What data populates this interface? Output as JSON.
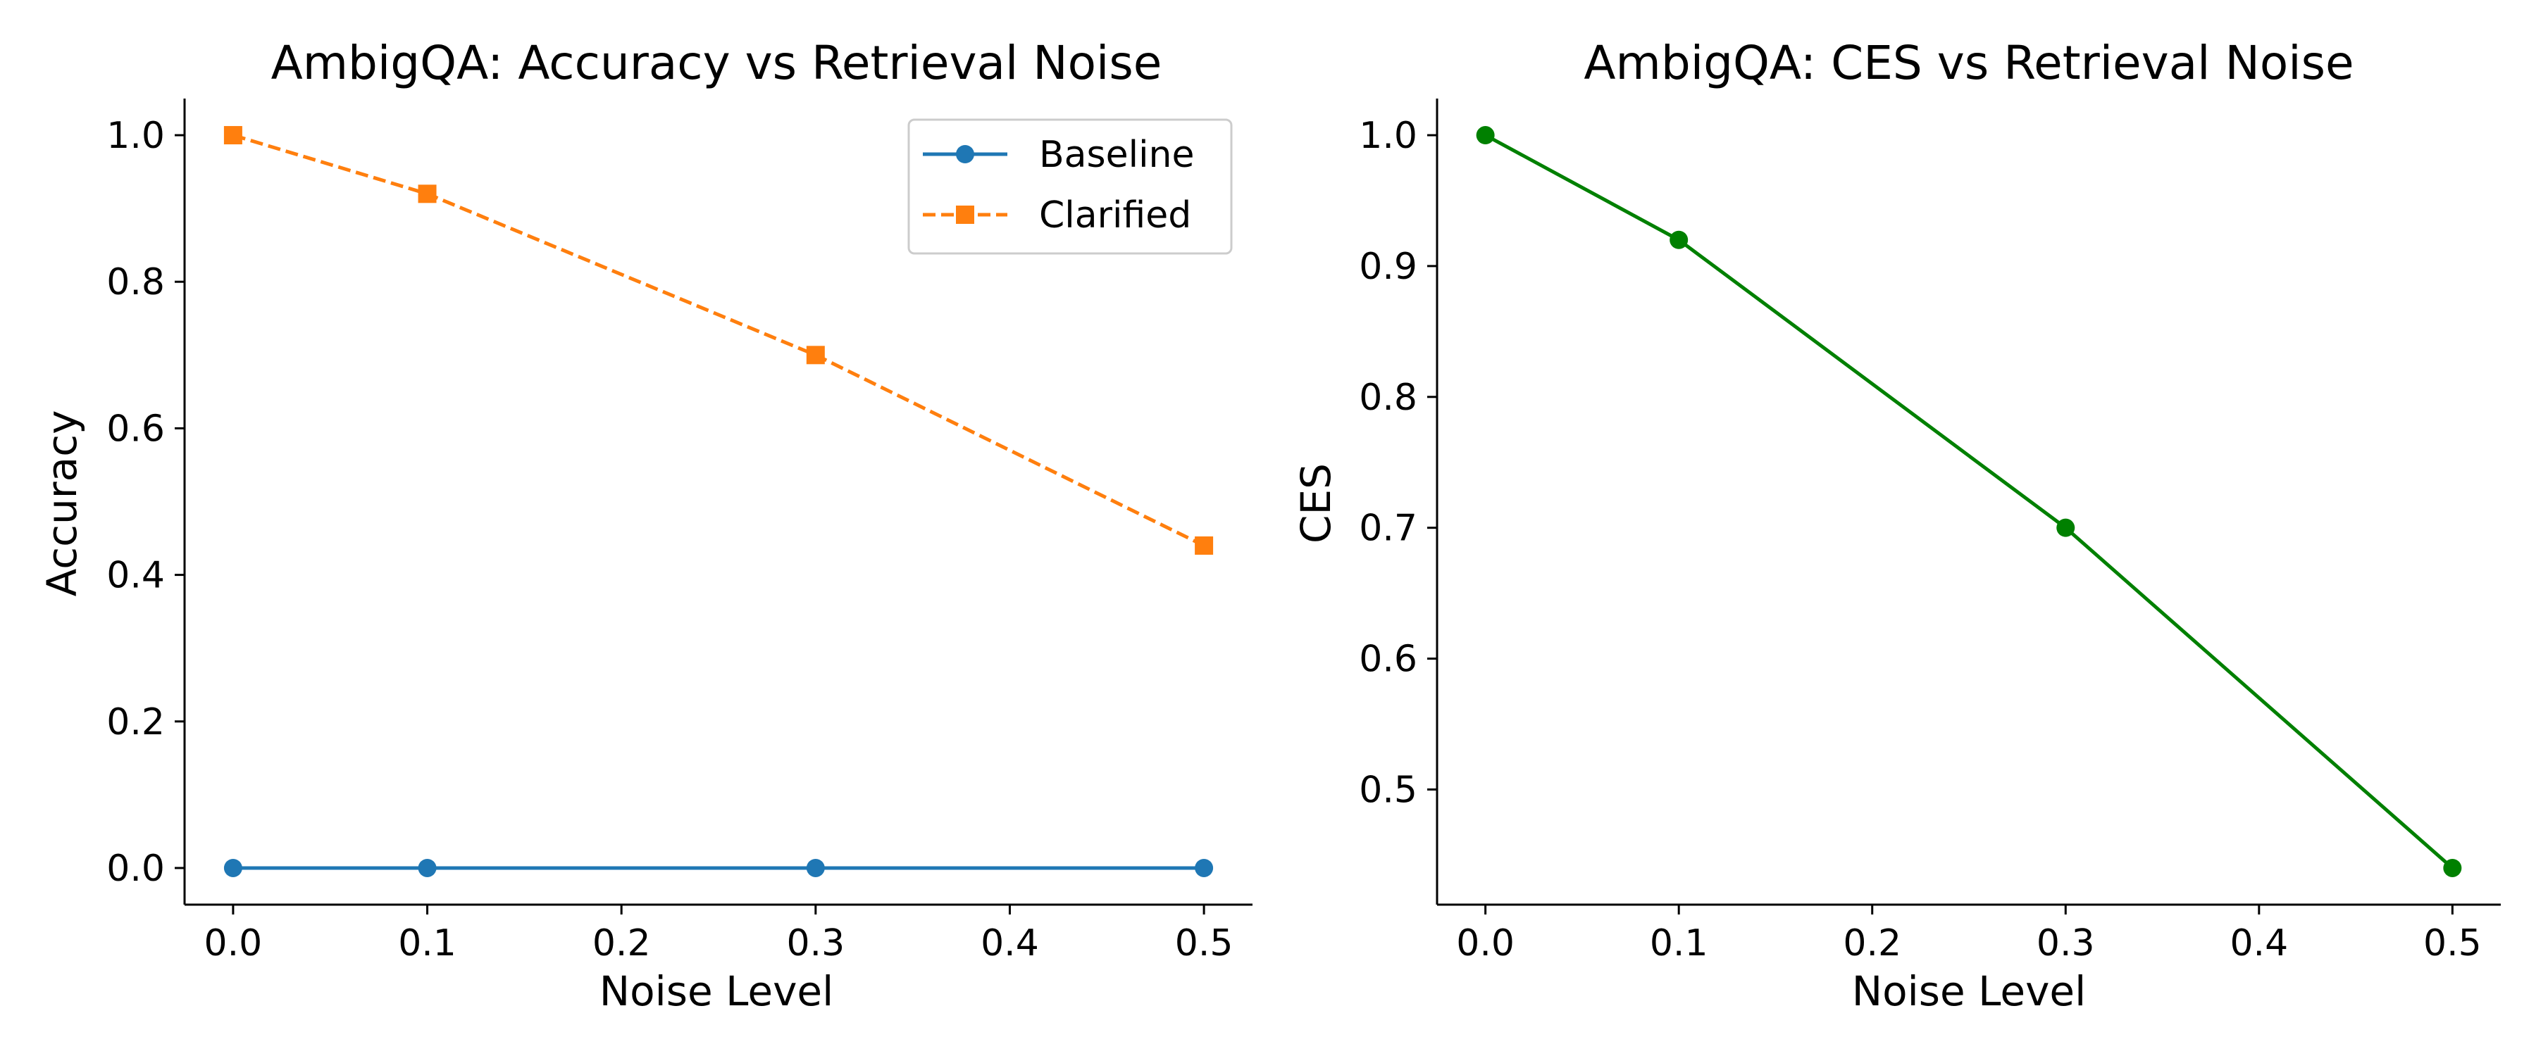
{
  "chart_data": [
    {
      "type": "line",
      "title": "AmbigQA: Accuracy vs Retrieval Noise",
      "xlabel": "Noise Level",
      "ylabel": "Accuracy",
      "xlim": [
        -0.025,
        0.525
      ],
      "ylim": [
        -0.05,
        1.05
      ],
      "x_ticks": [
        0.0,
        0.1,
        0.2,
        0.3,
        0.4,
        0.5
      ],
      "y_ticks": [
        0.0,
        0.2,
        0.4,
        0.6,
        0.8,
        1.0
      ],
      "x_tick_labels": [
        "0.0",
        "0.1",
        "0.2",
        "0.3",
        "0.4",
        "0.5"
      ],
      "y_tick_labels": [
        "0.0",
        "0.2",
        "0.4",
        "0.6",
        "0.8",
        "1.0"
      ],
      "grid": false,
      "legend": "top-right",
      "x": [
        0.0,
        0.1,
        0.3,
        0.5
      ],
      "series": [
        {
          "name": "Baseline",
          "values": [
            0.0,
            0.0,
            0.0,
            0.0
          ],
          "color": "#1f77b4",
          "marker": "circle",
          "linestyle": "solid"
        },
        {
          "name": "Clarified",
          "values": [
            1.0,
            0.92,
            0.7,
            0.44
          ],
          "color": "#ff7f0e",
          "marker": "square",
          "linestyle": "dashed"
        }
      ]
    },
    {
      "type": "line",
      "title": "AmbigQA: CES vs Retrieval Noise",
      "xlabel": "Noise Level",
      "ylabel": "CES",
      "xlim": [
        -0.025,
        0.525
      ],
      "ylim": [
        0.412,
        1.028
      ],
      "x_ticks": [
        0.0,
        0.1,
        0.2,
        0.3,
        0.4,
        0.5
      ],
      "y_ticks": [
        0.5,
        0.6,
        0.7,
        0.8,
        0.9,
        1.0
      ],
      "x_tick_labels": [
        "0.0",
        "0.1",
        "0.2",
        "0.3",
        "0.4",
        "0.5"
      ],
      "y_tick_labels": [
        "0.5",
        "0.6",
        "0.7",
        "0.8",
        "0.9",
        "1.0"
      ],
      "grid": false,
      "legend": "none",
      "x": [
        0.0,
        0.1,
        0.3,
        0.5
      ],
      "series": [
        {
          "name": "",
          "values": [
            1.0,
            0.92,
            0.7,
            0.44
          ],
          "color": "#008000",
          "marker": "circle",
          "linestyle": "solid"
        }
      ]
    }
  ]
}
